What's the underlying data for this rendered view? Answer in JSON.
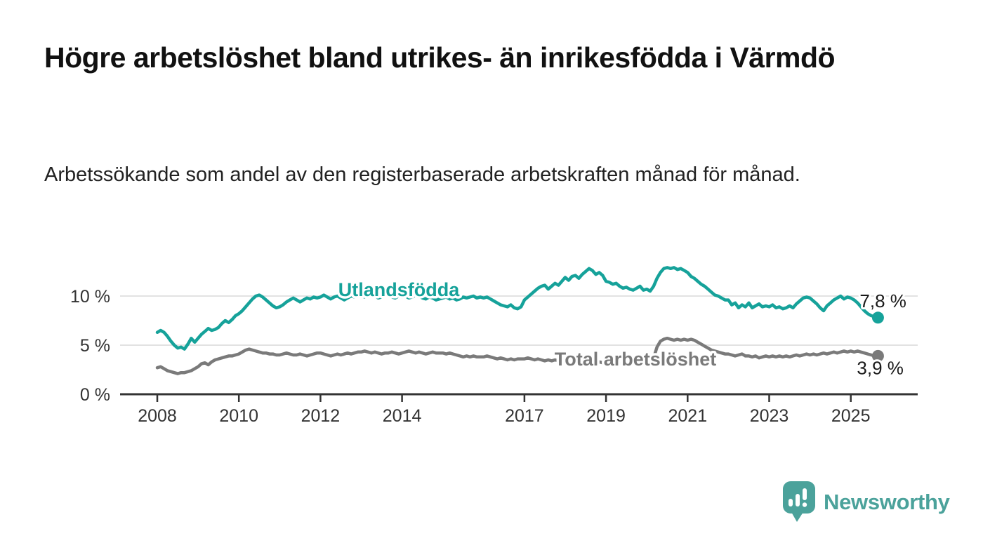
{
  "header": {
    "title": "Högre arbetslöshet bland utrikes- än inrikesfödda i Värmdö",
    "subtitle": "Arbetssökande som andel av den registerbaserade arbetskraften månad för månad."
  },
  "chart_data": {
    "type": "line",
    "x_start_year": 2008,
    "x_start_month": 1,
    "frequency": "monthly",
    "x_end_label": "2025-09",
    "xticks": [
      2008,
      2010,
      2012,
      2014,
      2017,
      2019,
      2021,
      2023,
      2025
    ],
    "xtick_labels": [
      "2008",
      "2010",
      "2012",
      "2014",
      "2017",
      "2019",
      "2021",
      "2023",
      "2025"
    ],
    "yticks": [
      0,
      5,
      10
    ],
    "ytick_labels": [
      "0 %",
      "5 %",
      "10 %"
    ],
    "ylim": [
      0,
      13.5
    ],
    "grid": "horizontal",
    "legend_position": "inline-labels-on-lines",
    "axis_color": "#333333",
    "grid_color": "#d9d9d9",
    "series": [
      {
        "name": "Utlandsfödda",
        "color": "#16a29a",
        "end_label": "7,8 %",
        "end_value": 7.8,
        "values": [
          6.3,
          6.5,
          6.3,
          5.9,
          5.4,
          5.0,
          4.7,
          4.8,
          4.6,
          5.1,
          5.7,
          5.3,
          5.7,
          6.1,
          6.4,
          6.7,
          6.5,
          6.6,
          6.8,
          7.2,
          7.5,
          7.3,
          7.6,
          8.0,
          8.2,
          8.5,
          8.9,
          9.3,
          9.7,
          10.0,
          10.1,
          9.9,
          9.6,
          9.3,
          9.0,
          8.8,
          8.9,
          9.1,
          9.4,
          9.6,
          9.8,
          9.6,
          9.4,
          9.6,
          9.8,
          9.7,
          9.9,
          9.8,
          9.9,
          10.1,
          9.9,
          9.7,
          9.9,
          10.0,
          9.8,
          9.6,
          9.8,
          10.0,
          9.9,
          10.1,
          10.0,
          9.9,
          10.1,
          10.2,
          10.0,
          9.8,
          9.9,
          10.1,
          10.0,
          9.9,
          9.8,
          10.0,
          9.9,
          10.0,
          9.8,
          9.9,
          10.1,
          10.0,
          9.8,
          9.7,
          9.9,
          9.8,
          9.6,
          9.7,
          9.8,
          9.9,
          9.7,
          9.8,
          9.6,
          9.7,
          9.9,
          9.8,
          9.9,
          10.0,
          9.8,
          9.9,
          9.8,
          9.9,
          9.7,
          9.5,
          9.3,
          9.1,
          9.0,
          8.9,
          9.1,
          8.8,
          8.7,
          8.9,
          9.6,
          9.9,
          10.2,
          10.5,
          10.8,
          11.0,
          11.1,
          10.7,
          11.0,
          11.3,
          11.1,
          11.5,
          11.9,
          11.6,
          12.0,
          12.1,
          11.8,
          12.2,
          12.5,
          12.8,
          12.6,
          12.2,
          12.4,
          12.1,
          11.5,
          11.4,
          11.2,
          11.3,
          11.0,
          10.8,
          10.9,
          10.7,
          10.6,
          10.8,
          11.0,
          10.6,
          10.7,
          10.5,
          11.0,
          11.8,
          12.4,
          12.8,
          12.9,
          12.8,
          12.9,
          12.7,
          12.8,
          12.6,
          12.4,
          12.0,
          11.8,
          11.5,
          11.2,
          11.0,
          10.7,
          10.4,
          10.1,
          10.0,
          9.8,
          9.6,
          9.6,
          9.1,
          9.3,
          8.8,
          9.1,
          8.9,
          9.3,
          8.8,
          9.0,
          9.2,
          8.9,
          9.0,
          8.9,
          9.1,
          8.8,
          8.9,
          8.7,
          8.8,
          9.0,
          8.8,
          9.2,
          9.5,
          9.8,
          9.9,
          9.8,
          9.5,
          9.2,
          8.8,
          8.5,
          9.0,
          9.3,
          9.6,
          9.8,
          10.0,
          9.7,
          9.9,
          9.8,
          9.6,
          9.3,
          8.9,
          8.5,
          8.2,
          8.0,
          7.9,
          7.8
        ]
      },
      {
        "name": "Total arbetslöshet",
        "color": "#7a7a7a",
        "end_label": "3,9 %",
        "end_value": 3.9,
        "values": [
          2.7,
          2.8,
          2.6,
          2.4,
          2.3,
          2.2,
          2.1,
          2.2,
          2.2,
          2.3,
          2.4,
          2.6,
          2.8,
          3.1,
          3.2,
          3.0,
          3.3,
          3.5,
          3.6,
          3.7,
          3.8,
          3.9,
          3.9,
          4.0,
          4.1,
          4.3,
          4.5,
          4.6,
          4.5,
          4.4,
          4.3,
          4.2,
          4.2,
          4.1,
          4.1,
          4.0,
          4.0,
          4.1,
          4.2,
          4.1,
          4.0,
          4.0,
          4.1,
          4.0,
          3.9,
          4.0,
          4.1,
          4.2,
          4.2,
          4.1,
          4.0,
          3.9,
          4.0,
          4.1,
          4.0,
          4.1,
          4.2,
          4.1,
          4.2,
          4.3,
          4.3,
          4.4,
          4.3,
          4.2,
          4.3,
          4.2,
          4.1,
          4.2,
          4.2,
          4.3,
          4.2,
          4.1,
          4.2,
          4.3,
          4.4,
          4.3,
          4.2,
          4.3,
          4.2,
          4.1,
          4.2,
          4.3,
          4.2,
          4.2,
          4.2,
          4.1,
          4.2,
          4.1,
          4.0,
          3.9,
          3.8,
          3.9,
          3.8,
          3.9,
          3.8,
          3.8,
          3.8,
          3.9,
          3.8,
          3.7,
          3.6,
          3.7,
          3.6,
          3.5,
          3.6,
          3.5,
          3.6,
          3.6,
          3.6,
          3.7,
          3.6,
          3.5,
          3.6,
          3.5,
          3.4,
          3.5,
          3.4,
          3.5,
          3.4,
          3.5,
          3.5,
          3.4,
          3.5,
          3.4,
          3.3,
          3.4,
          3.3,
          3.2,
          3.3,
          3.4,
          3.3,
          3.2,
          3.3,
          3.2,
          3.1,
          3.2,
          3.1,
          3.2,
          3.1,
          3.2,
          3.2,
          3.1,
          3.2,
          3.3,
          3.4,
          3.5,
          3.7,
          4.8,
          5.4,
          5.6,
          5.7,
          5.6,
          5.5,
          5.6,
          5.5,
          5.6,
          5.5,
          5.6,
          5.5,
          5.3,
          5.1,
          4.9,
          4.7,
          4.5,
          4.4,
          4.3,
          4.2,
          4.1,
          4.1,
          4.0,
          3.9,
          4.0,
          4.1,
          3.9,
          3.9,
          3.8,
          3.9,
          3.7,
          3.8,
          3.9,
          3.8,
          3.9,
          3.8,
          3.9,
          3.8,
          3.9,
          3.8,
          3.9,
          4.0,
          3.9,
          4.0,
          4.1,
          4.0,
          4.1,
          4.0,
          4.1,
          4.2,
          4.1,
          4.2,
          4.3,
          4.2,
          4.3,
          4.4,
          4.3,
          4.4,
          4.3,
          4.4,
          4.3,
          4.2,
          4.1,
          4.0,
          3.9,
          3.9
        ]
      }
    ]
  },
  "branding": {
    "logo_text": "Newsworthy",
    "logo_color": "#4ba29b",
    "logo_icon": "speech-bubble-bar-chart-icon"
  }
}
